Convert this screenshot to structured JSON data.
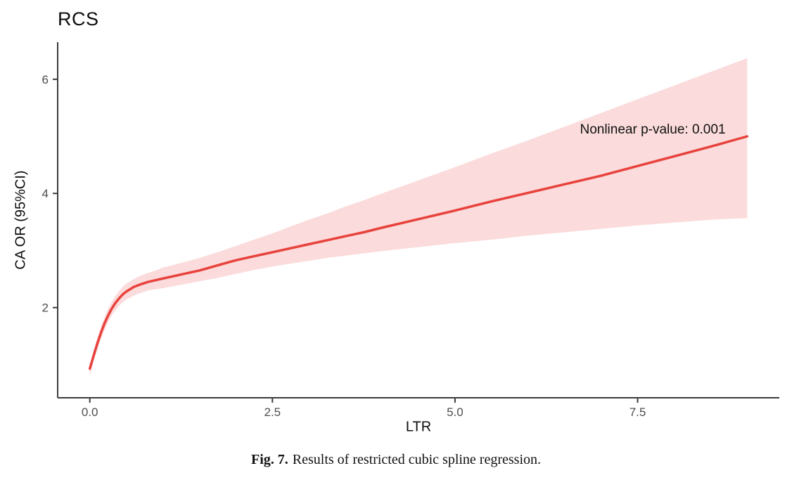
{
  "figure": {
    "title": "RCS",
    "x_axis_label": "LTR",
    "y_axis_label": "CA OR (95%CI)",
    "annotation_text": "Nonlinear p-value: 0.001",
    "caption": {
      "label": "Fig. 7.",
      "text": "Results of restricted cubic spline regression."
    }
  },
  "chart_data": {
    "type": "line",
    "title": "RCS",
    "xlabel": "LTR",
    "ylabel": "CA OR (95%CI)",
    "xlim": [
      -0.44,
      9.44
    ],
    "ylim": [
      0.42,
      6.65
    ],
    "x_ticks": [
      0.0,
      2.5,
      5.0,
      7.5
    ],
    "x_tick_labels": [
      "0.0",
      "2.5",
      "5.0",
      "7.5"
    ],
    "y_ticks": [
      2,
      4,
      6
    ],
    "y_tick_labels": [
      "2",
      "4",
      "6"
    ],
    "grid": false,
    "legend_position": "none",
    "annotation": {
      "text": "Nonlinear p-value: 0.001",
      "x": 7.7,
      "y": 5.1
    },
    "x": [
      0,
      0.05,
      0.1,
      0.15,
      0.2,
      0.25,
      0.3,
      0.35,
      0.4,
      0.45,
      0.5,
      0.6,
      0.7,
      0.8,
      0.9,
      1,
      1.25,
      1.5,
      1.75,
      2,
      2.25,
      2.5,
      2.75,
      3,
      3.25,
      3.5,
      3.75,
      4,
      4.5,
      5,
      5.5,
      6,
      6.5,
      7,
      7.5,
      8,
      8.5,
      9
    ],
    "series": [
      {
        "name": "RCS estimate (CA odds ratio)",
        "type": "line",
        "color": "#e8423c",
        "values": [
          0.93,
          1.15,
          1.36,
          1.55,
          1.72,
          1.86,
          1.98,
          2.08,
          2.16,
          2.23,
          2.28,
          2.36,
          2.41,
          2.45,
          2.48,
          2.51,
          2.58,
          2.65,
          2.74,
          2.83,
          2.9,
          2.97,
          3.04,
          3.11,
          3.18,
          3.25,
          3.32,
          3.4,
          3.55,
          3.7,
          3.86,
          4.01,
          4.16,
          4.31,
          4.48,
          4.65,
          4.82,
          5.0
        ]
      },
      {
        "name": "95% CI upper bound",
        "type": "band-upper",
        "color": "#fbdbdb",
        "values": [
          1.0,
          1.24,
          1.46,
          1.66,
          1.83,
          1.98,
          2.1,
          2.2,
          2.29,
          2.36,
          2.42,
          2.5,
          2.56,
          2.61,
          2.65,
          2.7,
          2.78,
          2.87,
          2.97,
          3.08,
          3.19,
          3.3,
          3.42,
          3.54,
          3.65,
          3.77,
          3.88,
          4.0,
          4.23,
          4.46,
          4.7,
          4.93,
          5.17,
          5.41,
          5.65,
          5.89,
          6.13,
          6.37
        ]
      },
      {
        "name": "95% CI lower bound",
        "type": "band-lower",
        "color": "#fbdbdb",
        "values": [
          0.8,
          1.05,
          1.26,
          1.44,
          1.6,
          1.74,
          1.86,
          1.95,
          2.03,
          2.09,
          2.14,
          2.21,
          2.26,
          2.3,
          2.32,
          2.34,
          2.4,
          2.46,
          2.52,
          2.59,
          2.66,
          2.72,
          2.77,
          2.82,
          2.87,
          2.91,
          2.95,
          2.99,
          3.06,
          3.13,
          3.19,
          3.26,
          3.32,
          3.38,
          3.44,
          3.49,
          3.54,
          3.57
        ]
      }
    ],
    "colors": {
      "line": "#e8423c",
      "band": "#fbdbdb",
      "axis": "#3c3c3c",
      "tick_label": "#4d4d4d",
      "text": "#0c0c0c"
    }
  }
}
